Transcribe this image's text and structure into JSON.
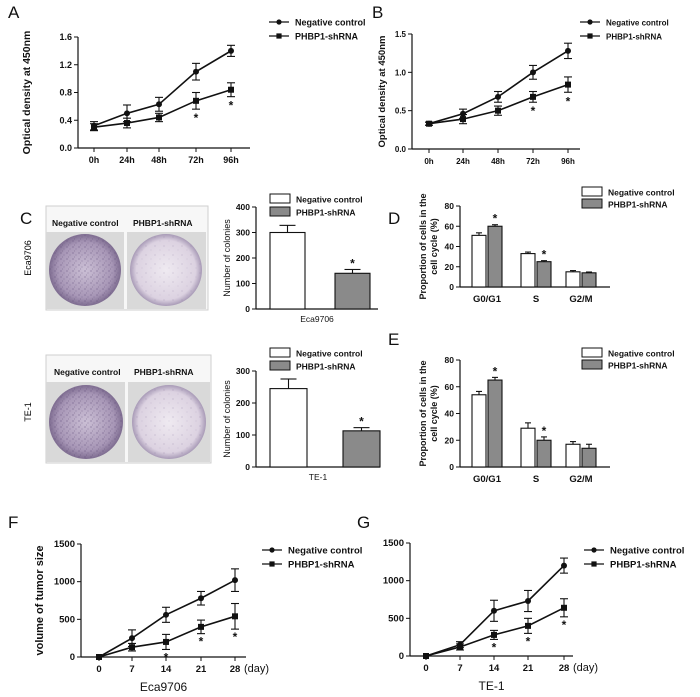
{
  "panels": {
    "A": {
      "label": "A",
      "type": "line",
      "ylabel": "Optical density at 450nm",
      "xlabel": "",
      "categories": [
        "0h",
        "24h",
        "48h",
        "72h",
        "96h"
      ],
      "ylim": [
        0,
        1.6
      ],
      "yticks": [
        "0.0",
        "0.4",
        "0.8",
        "1.2",
        "1.6"
      ],
      "series": [
        {
          "name": "Negative control",
          "values": [
            0.32,
            0.5,
            0.63,
            1.1,
            1.4
          ],
          "errors": [
            0.06,
            0.12,
            0.1,
            0.12,
            0.08
          ],
          "marker": "circle"
        },
        {
          "name": "PHBP1-shRNA",
          "values": [
            0.3,
            0.36,
            0.44,
            0.68,
            0.84
          ],
          "errors": [
            0.05,
            0.07,
            0.06,
            0.12,
            0.1
          ],
          "marker": "square"
        }
      ],
      "annotations": [
        "*",
        "*"
      ]
    },
    "B": {
      "label": "B",
      "type": "line",
      "ylabel": "Optical density at 450nm",
      "xlabel": "",
      "categories": [
        "0h",
        "24h",
        "48h",
        "72h",
        "96h"
      ],
      "ylim": [
        0,
        1.5
      ],
      "yticks": [
        "0.0",
        "0.5",
        "1.0",
        "1.5"
      ],
      "series": [
        {
          "name": "Negative control",
          "values": [
            0.33,
            0.46,
            0.68,
            1.0,
            1.28
          ],
          "errors": [
            0.02,
            0.06,
            0.07,
            0.09,
            0.1
          ],
          "marker": "circle"
        },
        {
          "name": "PHBP1-shRNA",
          "values": [
            0.33,
            0.39,
            0.5,
            0.68,
            0.84
          ],
          "errors": [
            0.02,
            0.06,
            0.06,
            0.07,
            0.1
          ],
          "marker": "square"
        }
      ],
      "annotations": [
        "*",
        "*"
      ]
    },
    "C_top": {
      "label": "C",
      "cell_line": "Eca9706",
      "dish_titles": [
        "Negative control",
        "PHBP1-shRNA"
      ],
      "type": "bar",
      "ylabel": "Number of colonies",
      "xlabel": "Eca9706",
      "ylim": [
        0,
        400
      ],
      "yticks": [
        "0",
        "100",
        "200",
        "300",
        "400"
      ],
      "series": [
        {
          "name": "Negative control",
          "value": 300,
          "error": 28
        },
        {
          "name": "PHBP1-shRNA",
          "value": 140,
          "error": 15
        }
      ],
      "annotations": [
        "*"
      ]
    },
    "C_bottom": {
      "cell_line": "TE-1",
      "dish_titles": [
        "Negative control",
        "PHBP1-shRNA"
      ],
      "type": "bar",
      "ylabel": "Number of colonies",
      "xlabel": "TE-1",
      "ylim": [
        0,
        300
      ],
      "yticks": [
        "0",
        "100",
        "200",
        "300"
      ],
      "series": [
        {
          "name": "Negative control",
          "value": 245,
          "error": 30
        },
        {
          "name": "PHBP1-shRNA",
          "value": 113,
          "error": 10
        }
      ],
      "annotations": [
        "*"
      ]
    },
    "D": {
      "label": "D",
      "type": "bar",
      "ylabel": "Proportion of cells in the cell cycle (%)",
      "categories": [
        "G0/G1",
        "S",
        "G2/M"
      ],
      "ylim": [
        0,
        80
      ],
      "yticks": [
        "0",
        "20",
        "40",
        "60",
        "80"
      ],
      "series": [
        {
          "name": "Negative control",
          "values": [
            51,
            33,
            15
          ],
          "errors": [
            2.5,
            1.5,
            1.2
          ]
        },
        {
          "name": "PHBP1-shRNA",
          "values": [
            60,
            25,
            14
          ],
          "errors": [
            1.5,
            1,
            0.8
          ]
        }
      ],
      "annotations": [
        "*",
        "*"
      ]
    },
    "E": {
      "label": "E",
      "type": "bar",
      "ylabel": "Proportion of cells in the cell cycle (%)",
      "categories": [
        "G0/G1",
        "S",
        "G2/M"
      ],
      "ylim": [
        0,
        80
      ],
      "yticks": [
        "0",
        "20",
        "40",
        "60",
        "80"
      ],
      "series": [
        {
          "name": "Negative control",
          "values": [
            54,
            29,
            17
          ],
          "errors": [
            2.5,
            4,
            2
          ]
        },
        {
          "name": "PHBP1-shRNA",
          "values": [
            65,
            20,
            14
          ],
          "errors": [
            2,
            2.5,
            3
          ]
        }
      ],
      "annotations": [
        "*",
        "*"
      ]
    },
    "F": {
      "label": "F",
      "type": "line",
      "ylabel": "volume of tumor size",
      "xlabel": "Eca9706",
      "unit": "(day)",
      "categories": [
        "0",
        "7",
        "14",
        "21",
        "28"
      ],
      "ylim": [
        0,
        1500
      ],
      "yticks": [
        "0",
        "500",
        "1000",
        "1500"
      ],
      "series": [
        {
          "name": "Negative control",
          "values": [
            0,
            250,
            560,
            780,
            1020
          ],
          "errors": [
            0,
            110,
            100,
            90,
            150
          ],
          "marker": "circle"
        },
        {
          "name": "PHBP1-shRNA",
          "values": [
            0,
            130,
            200,
            400,
            540
          ],
          "errors": [
            0,
            50,
            100,
            90,
            170
          ],
          "marker": "square"
        }
      ],
      "annotations": [
        "*",
        "*",
        "*"
      ]
    },
    "G": {
      "label": "G",
      "type": "line",
      "ylabel": "",
      "xlabel": "TE-1",
      "unit": "(day)",
      "categories": [
        "0",
        "7",
        "14",
        "21",
        "28"
      ],
      "ylim": [
        0,
        1500
      ],
      "yticks": [
        "0",
        "500",
        "1000",
        "1500"
      ],
      "series": [
        {
          "name": "Negative control",
          "values": [
            0,
            150,
            600,
            730,
            1200
          ],
          "errors": [
            0,
            40,
            140,
            140,
            100
          ],
          "marker": "circle"
        },
        {
          "name": "PHBP1-shRNA",
          "values": [
            0,
            120,
            280,
            400,
            640
          ],
          "errors": [
            0,
            40,
            60,
            100,
            120
          ],
          "marker": "square"
        }
      ],
      "annotations": [
        "*",
        "*",
        "*"
      ]
    }
  },
  "colors": {
    "line": "#111111",
    "bar_control": "#ffffff",
    "bar_treatment": "#8a8a8a",
    "dish_tint": "#8a7a9e"
  }
}
